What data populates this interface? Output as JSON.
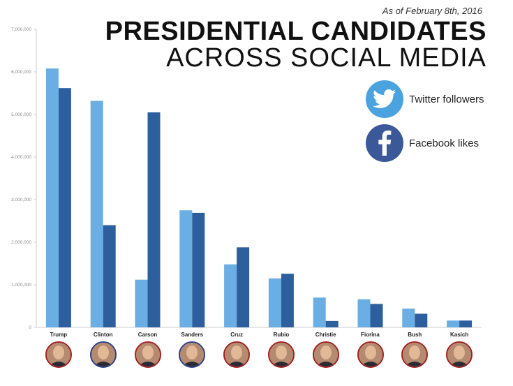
{
  "header": {
    "date": "As of February 8th, 2016",
    "title_line1": "PRESIDENTIAL CANDIDATES",
    "title_line2": "ACROSS SOCIAL MEDIA"
  },
  "legend": {
    "twitter": {
      "label": "Twitter followers",
      "icon": "twitter-bird-icon",
      "color": "#4aa3df"
    },
    "facebook": {
      "label": "Facebook likes",
      "icon": "facebook-f-icon",
      "color": "#3b5998"
    }
  },
  "colors": {
    "twitter_bar": "#6aaee3",
    "facebook_bar": "#2d5f9e",
    "axis": "#cccccc",
    "republican_ring": "#a3201d",
    "democrat_ring": "#2a3f8a"
  },
  "chart_data": {
    "type": "bar",
    "categories": [
      "Trump",
      "Clinton",
      "Carson",
      "Sanders",
      "Cruz",
      "Rubio",
      "Christie",
      "Fiorina",
      "Bush",
      "Kasich"
    ],
    "series": [
      {
        "name": "Twitter followers",
        "values": [
          6080000,
          5320000,
          1120000,
          2750000,
          1480000,
          1150000,
          700000,
          660000,
          440000,
          160000
        ]
      },
      {
        "name": "Facebook likes",
        "values": [
          5620000,
          2400000,
          5050000,
          2690000,
          1880000,
          1260000,
          150000,
          550000,
          320000,
          160000
        ]
      }
    ],
    "yticks": [
      "0",
      "1,000,000",
      "2,000,000",
      "3,000,000",
      "4,000,000",
      "5,000,000",
      "6,000,000",
      "7,000,000"
    ],
    "ylim": [
      0,
      7000000
    ],
    "party": [
      "rep",
      "dem",
      "rep",
      "dem",
      "rep",
      "rep",
      "rep",
      "rep",
      "rep",
      "rep"
    ],
    "grid": false,
    "legend_position": "top-right"
  }
}
